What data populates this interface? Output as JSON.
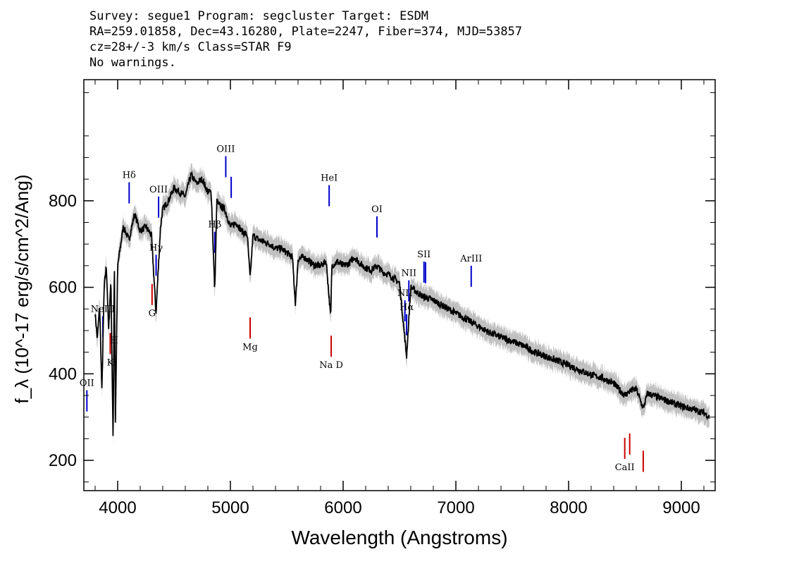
{
  "header": {
    "line1": "Survey: segue1 Program: segcluster Target: ESDM",
    "line2": "RA=259.01858, Dec=43.16280, Plate=2247, Fiber=374, MJD=53857",
    "line3": "cz=28+/-3 km/s Class=STAR F9",
    "line4": "No warnings."
  },
  "chart_data": {
    "type": "line",
    "xlabel": "Wavelength (Angstroms)",
    "ylabel": "f_λ (10^-17 erg/s/cm^2/Ang)",
    "xlim": [
      3700,
      9300
    ],
    "ylim": [
      130,
      1080
    ],
    "x_ticks": [
      4000,
      5000,
      6000,
      7000,
      8000,
      9000
    ],
    "y_ticks": [
      200,
      400,
      600,
      800
    ],
    "colors": {
      "flux": "#000000",
      "error": "#c0c0c0",
      "emission": "#0000cc",
      "absorption": "#cc0000"
    },
    "series": [
      {
        "x": [
          3800,
          3820,
          3840,
          3860,
          3880,
          3900,
          3920,
          3940,
          3960,
          3970,
          3980,
          4000,
          4050,
          4100,
          4150,
          4200,
          4250,
          4300,
          4340,
          4380,
          4400,
          4450,
          4500,
          4550,
          4600,
          4650,
          4700,
          4750,
          4800,
          4830,
          4861,
          4880,
          4900,
          4950,
          5000,
          5050,
          5100,
          5150,
          5175,
          5200,
          5250,
          5300,
          5350,
          5400,
          5450,
          5500,
          5550,
          5577,
          5600,
          5650,
          5700,
          5750,
          5800,
          5850,
          5890,
          5900,
          5950,
          6000,
          6050,
          6100,
          6150,
          6200,
          6250,
          6300,
          6350,
          6400,
          6450,
          6500,
          6563,
          6600,
          6650,
          6700,
          6800,
          6900,
          7000,
          7100,
          7200,
          7300,
          7400,
          7500,
          7600,
          7700,
          7800,
          7900,
          8000,
          8100,
          8200,
          8300,
          8400,
          8498,
          8542,
          8600,
          8662,
          8700,
          8800,
          8900,
          9000,
          9100,
          9200,
          9250
        ],
        "y": [
          540,
          480,
          560,
          360,
          600,
          650,
          500,
          620,
          230,
          680,
          290,
          650,
          740,
          710,
          770,
          730,
          740,
          720,
          540,
          740,
          780,
          800,
          830,
          820,
          810,
          860,
          840,
          850,
          820,
          820,
          590,
          800,
          790,
          780,
          740,
          750,
          730,
          720,
          620,
          720,
          710,
          705,
          700,
          690,
          690,
          680,
          670,
          560,
          665,
          670,
          660,
          650,
          650,
          660,
          530,
          650,
          660,
          650,
          655,
          670,
          655,
          645,
          640,
          650,
          635,
          630,
          620,
          610,
          440,
          600,
          590,
          580,
          570,
          555,
          540,
          525,
          510,
          495,
          485,
          475,
          465,
          450,
          440,
          430,
          420,
          408,
          398,
          390,
          378,
          350,
          360,
          365,
          320,
          355,
          345,
          335,
          325,
          318,
          310,
          300
        ]
      }
    ],
    "emission_lines": [
      {
        "label": "OII",
        "x": 3727
      },
      {
        "label": "NeIII",
        "x": 3869
      },
      {
        "label": "Hδ",
        "x": 4102
      },
      {
        "label": "Hγ",
        "x": 4341
      },
      {
        "label": "OIII",
        "x": 4363
      },
      {
        "label": "Hβ",
        "x": 4861
      },
      {
        "label": "OIII",
        "x": 4959
      },
      {
        "label": "",
        "x": 5007
      },
      {
        "label": "HeI",
        "x": 5876
      },
      {
        "label": "OI",
        "x": 6300
      },
      {
        "label": "NII",
        "x": 6548
      },
      {
        "label": "Hα",
        "x": 6563
      },
      {
        "label": "NII",
        "x": 6583
      },
      {
        "label": "SII",
        "x": 6717
      },
      {
        "label": "",
        "x": 6731
      },
      {
        "label": "ArIII",
        "x": 7136
      }
    ],
    "absorption_lines": [
      {
        "label": "K",
        "x": 3934
      },
      {
        "label": "H",
        "x": 3969
      },
      {
        "label": "G",
        "x": 4305
      },
      {
        "label": "Mg",
        "x": 5175
      },
      {
        "label": "Na D",
        "x": 5894
      },
      {
        "label": "CaII",
        "x": 8498
      },
      {
        "label": "",
        "x": 8542
      },
      {
        "label": "",
        "x": 8662
      }
    ]
  }
}
